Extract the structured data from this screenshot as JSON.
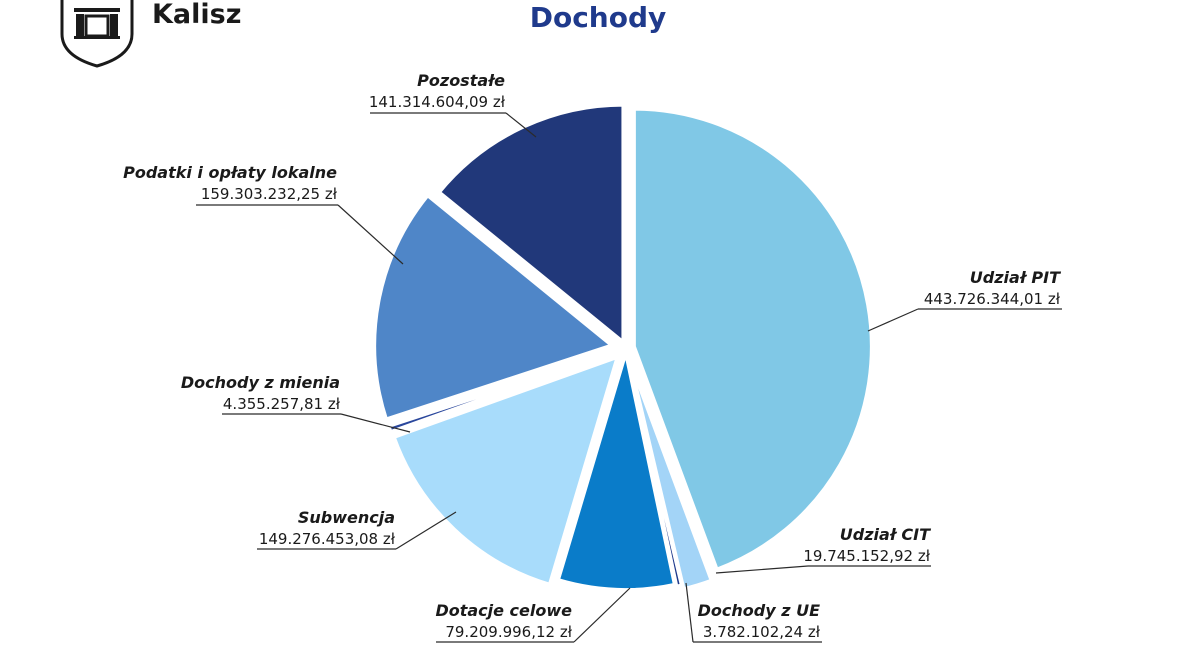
{
  "header": {
    "city": "Kalisz",
    "logo_icon": "city-crest-icon"
  },
  "chart_data": {
    "type": "pie",
    "title": "Dochody",
    "start": "12 o'clock",
    "direction": "clockwise",
    "slices": [
      {
        "label": "Udział PIT",
        "value": 443726344.01,
        "value_text": "443.726.344,01 zł",
        "color": "#80c8e6"
      },
      {
        "label": "Udział CIT",
        "value": 19745152.92,
        "value_text": "19.745.152,92 zł",
        "color": "#a3d4f7"
      },
      {
        "label": "Dochody z UE",
        "value": 3782102.24,
        "value_text": "3.782.102,24 zł",
        "color": "#1f3a8c"
      },
      {
        "label": "Dotacje celowe",
        "value": 79209996.12,
        "value_text": "79.209.996,12 zł",
        "color": "#0a7cc9"
      },
      {
        "label": "Subwencja",
        "value": 149276453.08,
        "value_text": "149.276.453,08 zł",
        "color": "#a8dcfb"
      },
      {
        "label": "Dochody z mienia",
        "value": 4355257.81,
        "value_text": "4.355.257,81 zł",
        "color": "#2a479c"
      },
      {
        "label": "Podatki i opłaty lokalne",
        "value": 159303232.25,
        "value_text": "159.303.232,25 zł",
        "color": "#4f86c8"
      },
      {
        "label": "Pozostałe",
        "value": 141314604.09,
        "value_text": "141.314.604,09 zł",
        "color": "#21387a"
      }
    ]
  }
}
